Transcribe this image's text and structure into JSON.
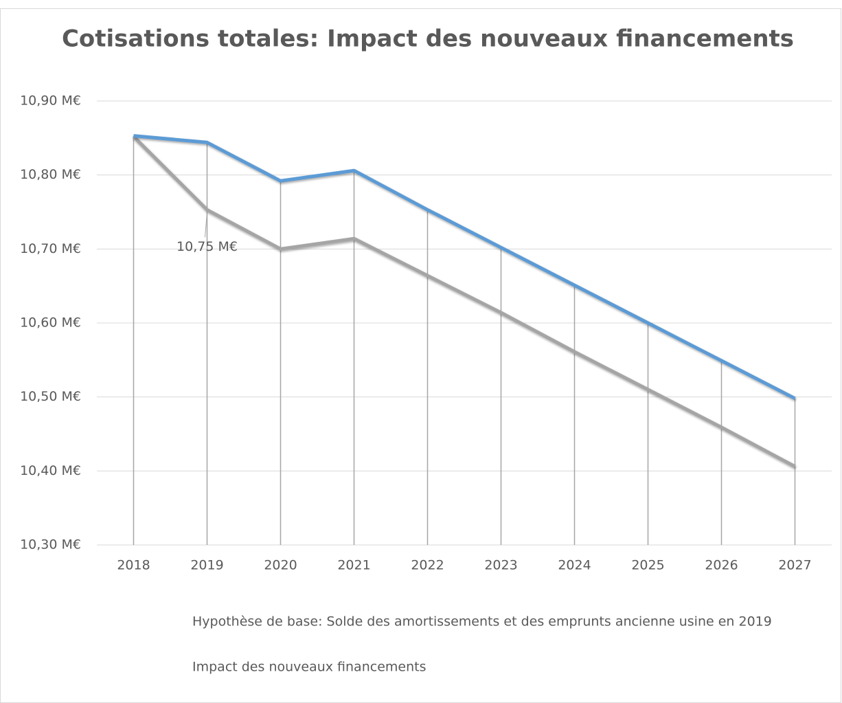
{
  "chart_data": {
    "type": "line",
    "title": "Cotisations totales: Impact des nouveaux financements",
    "categories": [
      "2018",
      "2019",
      "2020",
      "2021",
      "2022",
      "2023",
      "2024",
      "2025",
      "2026",
      "2027"
    ],
    "series": [
      {
        "name": "Hypothèse de base:  Solde des amortissements et des emprunts ancienne usine en 2019",
        "color": "#a5a5a5",
        "values": [
          10.852,
          10.753,
          10.7,
          10.714,
          10.664,
          10.614,
          10.561,
          10.51,
          10.459,
          10.406
        ],
        "value_labels": [
          null,
          "10,75 M€",
          null,
          null,
          null,
          null,
          null,
          null,
          null,
          null
        ]
      },
      {
        "name": "Impact des nouveaux financements",
        "color": "#5b9bd5",
        "values": [
          10.853,
          10.844,
          10.792,
          10.806,
          10.753,
          10.702,
          10.651,
          10.6,
          10.549,
          10.498
        ]
      }
    ],
    "ylim": [
      10.3,
      10.9
    ],
    "yticks": [
      {
        "value": 10.3,
        "label": "10,30 M€"
      },
      {
        "value": 10.4,
        "label": "10,40 M€"
      },
      {
        "value": 10.5,
        "label": "10,50 M€"
      },
      {
        "value": 10.6,
        "label": "10,60 M€"
      },
      {
        "value": 10.7,
        "label": "10,70 M€"
      },
      {
        "value": 10.8,
        "label": "10,80 M€"
      },
      {
        "value": 10.9,
        "label": "10,90 M€"
      }
    ],
    "grid": true,
    "legend": "bottom"
  }
}
